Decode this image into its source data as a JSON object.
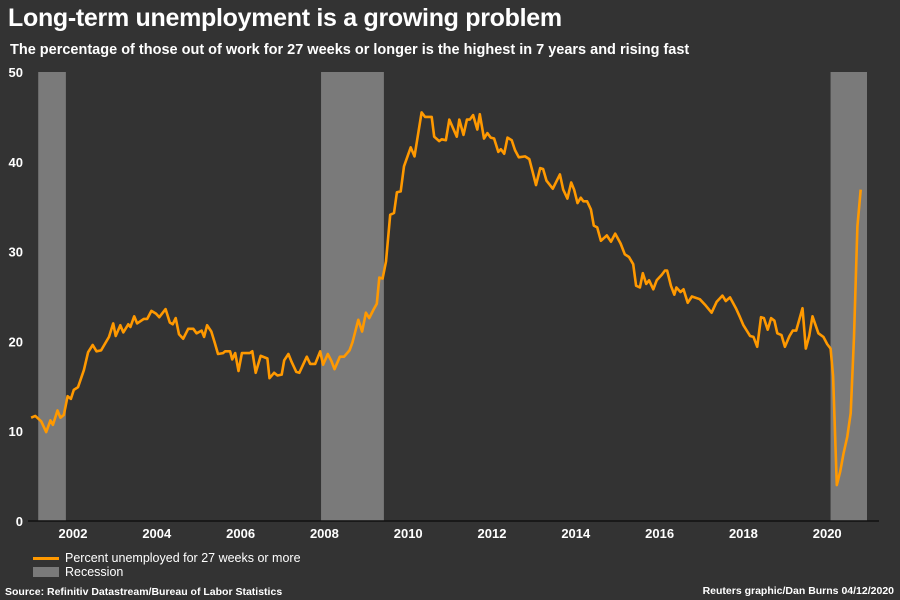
{
  "chart_data": {
    "type": "line",
    "title": "Long-term unemployment is a growing problem",
    "subtitle": "The percentage of those out of work for 27 weeks or longer is the highest in 7 years and rising fast",
    "xlabel": "",
    "ylabel": "",
    "ylim": [
      0,
      50
    ],
    "xlim": [
      2001.0,
      2021.2
    ],
    "yticks": [
      "0",
      "10",
      "20",
      "30",
      "40",
      "50"
    ],
    "xticks": [
      "2002",
      "2004",
      "2006",
      "2008",
      "2010",
      "2012",
      "2014",
      "2016",
      "2018",
      "2020"
    ],
    "grid": false,
    "legend_position": "bottom-left",
    "legend": [
      "Percent unemployed for 27 weeks or more",
      "Recession"
    ],
    "recessions": [
      [
        2001.17,
        2001.83
      ],
      [
        2007.92,
        2009.42
      ],
      [
        2020.08,
        2020.95
      ]
    ],
    "series": [
      {
        "name": "Percent unemployed for 27 weeks or more",
        "color": "#ff9900",
        "points": [
          [
            2001.0,
            11.5
          ],
          [
            2001.1,
            11.7
          ],
          [
            2001.24,
            11.1
          ],
          [
            2001.36,
            9.9
          ],
          [
            2001.46,
            11.2
          ],
          [
            2001.52,
            10.7
          ],
          [
            2001.63,
            12.3
          ],
          [
            2001.7,
            11.5
          ],
          [
            2001.78,
            11.8
          ],
          [
            2001.87,
            13.9
          ],
          [
            2001.95,
            13.6
          ],
          [
            2002.02,
            14.6
          ],
          [
            2002.12,
            14.9
          ],
          [
            2002.26,
            16.8
          ],
          [
            2002.36,
            18.8
          ],
          [
            2002.47,
            19.6
          ],
          [
            2002.56,
            18.9
          ],
          [
            2002.67,
            19.0
          ],
          [
            2002.86,
            20.5
          ],
          [
            2002.96,
            22.0
          ],
          [
            2003.02,
            20.6
          ],
          [
            2003.13,
            21.8
          ],
          [
            2003.2,
            21.0
          ],
          [
            2003.32,
            21.9
          ],
          [
            2003.37,
            21.6
          ],
          [
            2003.46,
            22.8
          ],
          [
            2003.53,
            22.0
          ],
          [
            2003.69,
            22.5
          ],
          [
            2003.77,
            22.5
          ],
          [
            2003.87,
            23.4
          ],
          [
            2003.98,
            23.1
          ],
          [
            2004.06,
            22.7
          ],
          [
            2004.21,
            23.6
          ],
          [
            2004.31,
            22.1
          ],
          [
            2004.38,
            21.9
          ],
          [
            2004.45,
            22.6
          ],
          [
            2004.53,
            20.8
          ],
          [
            2004.63,
            20.3
          ],
          [
            2004.75,
            21.4
          ],
          [
            2004.87,
            21.4
          ],
          [
            2004.95,
            20.9
          ],
          [
            2005.07,
            21.2
          ],
          [
            2005.13,
            20.5
          ],
          [
            2005.2,
            21.8
          ],
          [
            2005.3,
            21.1
          ],
          [
            2005.38,
            19.9
          ],
          [
            2005.46,
            18.6
          ],
          [
            2005.58,
            18.7
          ],
          [
            2005.63,
            18.9
          ],
          [
            2005.75,
            18.9
          ],
          [
            2005.8,
            18.0
          ],
          [
            2005.87,
            18.7
          ],
          [
            2005.95,
            16.7
          ],
          [
            2006.03,
            18.7
          ],
          [
            2006.22,
            18.7
          ],
          [
            2006.28,
            18.9
          ],
          [
            2006.36,
            16.5
          ],
          [
            2006.48,
            18.4
          ],
          [
            2006.64,
            18.1
          ],
          [
            2006.69,
            15.9
          ],
          [
            2006.8,
            16.5
          ],
          [
            2006.88,
            16.2
          ],
          [
            2006.98,
            16.3
          ],
          [
            2007.04,
            17.9
          ],
          [
            2007.14,
            18.6
          ],
          [
            2007.22,
            17.7
          ],
          [
            2007.33,
            16.6
          ],
          [
            2007.4,
            16.5
          ],
          [
            2007.58,
            18.3
          ],
          [
            2007.66,
            17.5
          ],
          [
            2007.78,
            17.5
          ],
          [
            2007.9,
            18.9
          ],
          [
            2007.97,
            17.4
          ],
          [
            2008.08,
            18.6
          ],
          [
            2008.17,
            17.8
          ],
          [
            2008.24,
            16.9
          ],
          [
            2008.37,
            18.3
          ],
          [
            2008.47,
            18.3
          ],
          [
            2008.6,
            19.0
          ],
          [
            2008.67,
            19.9
          ],
          [
            2008.81,
            22.4
          ],
          [
            2008.9,
            21.1
          ],
          [
            2008.99,
            23.2
          ],
          [
            2009.07,
            22.6
          ],
          [
            2009.18,
            23.6
          ],
          [
            2009.25,
            24.2
          ],
          [
            2009.31,
            27.1
          ],
          [
            2009.39,
            27.0
          ],
          [
            2009.47,
            28.9
          ],
          [
            2009.57,
            34.1
          ],
          [
            2009.66,
            34.3
          ],
          [
            2009.73,
            36.6
          ],
          [
            2009.82,
            36.7
          ],
          [
            2009.9,
            39.5
          ],
          [
            2010.06,
            41.6
          ],
          [
            2010.15,
            40.6
          ],
          [
            2010.32,
            45.5
          ],
          [
            2010.4,
            45.0
          ],
          [
            2010.56,
            45.0
          ],
          [
            2010.62,
            42.8
          ],
          [
            2010.74,
            42.3
          ],
          [
            2010.8,
            42.5
          ],
          [
            2010.9,
            42.4
          ],
          [
            2010.98,
            44.7
          ],
          [
            2011.16,
            42.8
          ],
          [
            2011.22,
            44.7
          ],
          [
            2011.32,
            43.0
          ],
          [
            2011.4,
            44.7
          ],
          [
            2011.47,
            44.7
          ],
          [
            2011.55,
            45.2
          ],
          [
            2011.65,
            43.6
          ],
          [
            2011.71,
            45.3
          ],
          [
            2011.81,
            42.6
          ],
          [
            2011.89,
            43.2
          ],
          [
            2011.97,
            42.7
          ],
          [
            2012.05,
            42.6
          ],
          [
            2012.15,
            41.1
          ],
          [
            2012.21,
            41.4
          ],
          [
            2012.29,
            40.9
          ],
          [
            2012.37,
            42.7
          ],
          [
            2012.47,
            42.4
          ],
          [
            2012.55,
            41.3
          ],
          [
            2012.64,
            40.5
          ],
          [
            2012.79,
            40.6
          ],
          [
            2012.89,
            40.3
          ],
          [
            2012.97,
            38.9
          ],
          [
            2013.05,
            37.4
          ],
          [
            2013.15,
            39.3
          ],
          [
            2013.22,
            39.2
          ],
          [
            2013.3,
            37.9
          ],
          [
            2013.45,
            37.0
          ],
          [
            2013.62,
            38.6
          ],
          [
            2013.7,
            36.9
          ],
          [
            2013.8,
            35.9
          ],
          [
            2013.89,
            37.7
          ],
          [
            2013.96,
            36.9
          ],
          [
            2014.04,
            35.4
          ],
          [
            2014.12,
            36.0
          ],
          [
            2014.18,
            35.6
          ],
          [
            2014.27,
            35.6
          ],
          [
            2014.36,
            34.7
          ],
          [
            2014.43,
            32.9
          ],
          [
            2014.51,
            32.7
          ],
          [
            2014.6,
            31.2
          ],
          [
            2014.74,
            31.8
          ],
          [
            2014.84,
            31.1
          ],
          [
            2014.94,
            32.0
          ],
          [
            2015.07,
            30.9
          ],
          [
            2015.17,
            29.7
          ],
          [
            2015.27,
            29.4
          ],
          [
            2015.37,
            28.6
          ],
          [
            2015.44,
            26.2
          ],
          [
            2015.53,
            26.0
          ],
          [
            2015.6,
            27.6
          ],
          [
            2015.68,
            26.4
          ],
          [
            2015.75,
            26.8
          ],
          [
            2015.85,
            25.8
          ],
          [
            2015.93,
            26.8
          ],
          [
            2016.05,
            27.4
          ],
          [
            2016.13,
            27.9
          ],
          [
            2016.18,
            27.9
          ],
          [
            2016.27,
            26.2
          ],
          [
            2016.35,
            25.2
          ],
          [
            2016.4,
            26.0
          ],
          [
            2016.5,
            25.5
          ],
          [
            2016.57,
            25.8
          ],
          [
            2016.67,
            24.3
          ],
          [
            2016.77,
            25.0
          ],
          [
            2016.96,
            24.7
          ],
          [
            2017.08,
            24.1
          ],
          [
            2017.24,
            23.2
          ],
          [
            2017.36,
            24.4
          ],
          [
            2017.5,
            25.1
          ],
          [
            2017.58,
            24.5
          ],
          [
            2017.68,
            24.9
          ],
          [
            2017.82,
            23.7
          ],
          [
            2017.92,
            22.7
          ],
          [
            2018.0,
            21.8
          ],
          [
            2018.16,
            20.6
          ],
          [
            2018.24,
            20.5
          ],
          [
            2018.33,
            19.4
          ],
          [
            2018.42,
            22.7
          ],
          [
            2018.49,
            22.6
          ],
          [
            2018.58,
            21.3
          ],
          [
            2018.66,
            22.6
          ],
          [
            2018.74,
            22.3
          ],
          [
            2018.81,
            20.9
          ],
          [
            2018.91,
            20.7
          ],
          [
            2018.99,
            19.4
          ],
          [
            2019.1,
            20.6
          ],
          [
            2019.18,
            21.2
          ],
          [
            2019.26,
            21.2
          ],
          [
            2019.41,
            23.7
          ],
          [
            2019.49,
            19.2
          ],
          [
            2019.57,
            20.6
          ],
          [
            2019.65,
            22.8
          ],
          [
            2019.79,
            20.9
          ],
          [
            2019.91,
            20.5
          ],
          [
            2020.0,
            19.7
          ],
          [
            2020.08,
            19.2
          ],
          [
            2020.14,
            16.1
          ],
          [
            2020.23,
            4.0
          ],
          [
            2020.31,
            5.5
          ],
          [
            2020.39,
            7.5
          ],
          [
            2020.48,
            9.4
          ],
          [
            2020.56,
            12.0
          ],
          [
            2020.64,
            20.5
          ],
          [
            2020.72,
            32.8
          ],
          [
            2020.8,
            36.9
          ]
        ]
      }
    ]
  },
  "footer": {
    "source": "Source: Refinitiv Datastream/Bureau of Labor Statistics",
    "credit": "Reuters graphic/Dan Burns 04/12/2020"
  }
}
